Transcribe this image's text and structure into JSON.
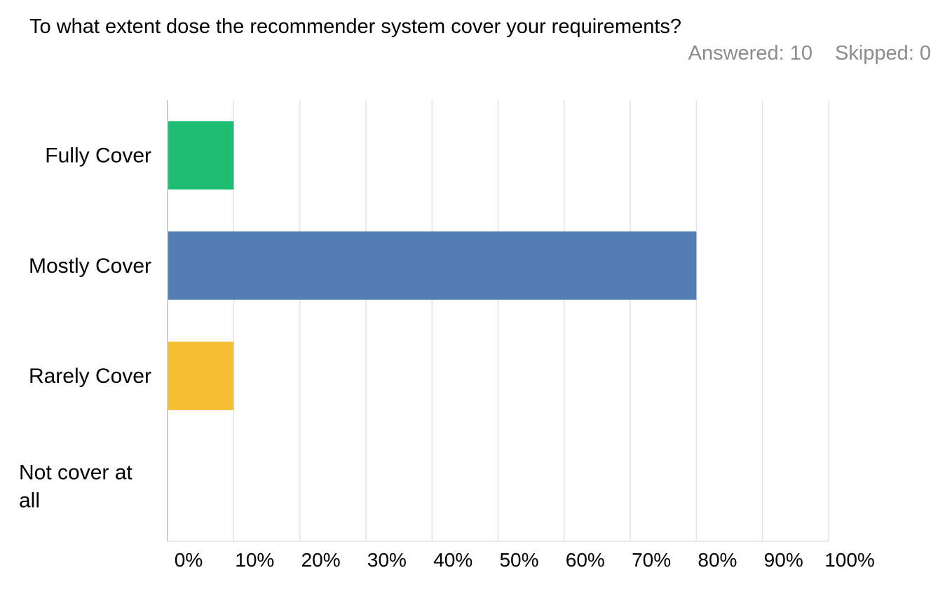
{
  "question": "To what extent dose the recommender system cover your requirements?",
  "stats": {
    "answered": "Answered: 10",
    "skipped": "Skipped: 0"
  },
  "chart_data": {
    "type": "bar",
    "orientation": "horizontal",
    "categories": [
      [
        "Fully Cover"
      ],
      [
        "Mostly Cover"
      ],
      [
        "Rarely Cover"
      ],
      [
        "Not cover at",
        "all"
      ]
    ],
    "values": [
      10,
      80,
      10,
      0
    ],
    "colors": [
      "#1dbe72",
      "#527db5",
      "#f6be31",
      "#8c8c8c"
    ],
    "xlim": [
      0,
      100
    ],
    "xticks": [
      "0%",
      "10%",
      "20%",
      "30%",
      "40%",
      "50%",
      "60%",
      "70%",
      "80%",
      "90%",
      "100%"
    ],
    "grid": true
  }
}
